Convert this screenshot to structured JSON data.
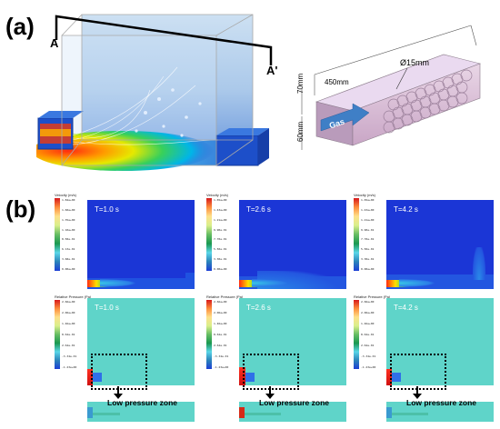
{
  "panel_a": {
    "label": "(a)",
    "section_start": "A",
    "section_end": "A'",
    "dims": {
      "length": "450mm",
      "diameter": "Ø15mm",
      "height1": "70mm",
      "height2": "60mm",
      "inlet_label": "Gas"
    }
  },
  "panel_b": {
    "label": "(b)",
    "times": [
      "T=1.0 s",
      "T=2.6 s",
      "T=4.2 s"
    ],
    "velocity_title": "Velocity (m/s)",
    "pressure_title": "Relative Pressure (Pa)",
    "low_pressure_label": "Low pressure zone",
    "velocity_ticks": [
      [
        "1.84e+00",
        "1.71e+00",
        "1.60e+00",
        "1.47e+00",
        "1.35e+00",
        "1.23e+00",
        "1.10e+00",
        "9.80e-01",
        "8.58e-01",
        "7.35e-01",
        "6.13e-01",
        "4.90e-01",
        "3.68e-01",
        "2.45e-01",
        "1.23e-01",
        "0.00e+00"
      ],
      [
        "1.65e+00",
        "1.54e+00",
        "1.43e+00",
        "1.32e+00",
        "1.21e+00",
        "1.10e+00",
        "9.90e-01",
        "8.80e-01",
        "7.70e-01",
        "6.60e-01",
        "5.50e-01",
        "4.40e-01",
        "3.30e-01",
        "2.20e-01",
        "1.10e-01",
        "0.00e+00"
      ],
      [
        "1.65e+00",
        "1.54e+00",
        "1.43e+00",
        "1.32e+00",
        "1.21e+00",
        "1.10e+00",
        "9.90e-01",
        "8.80e-01",
        "7.70e-01",
        "6.60e-01",
        "5.50e-01",
        "4.40e-01",
        "3.30e-01",
        "2.20e-01",
        "1.10e-01",
        "0.00e+00"
      ]
    ],
    "pressure_ticks": [
      [
        "2.66e+00",
        "2.36e+00",
        "2.06e+00",
        "1.76e+00",
        "1.46e+00",
        "1.16e+00",
        "8.62e-01",
        "5.63e-01",
        "2.64e-01",
        "-3.50e-02",
        "-3.34e-01",
        "-6.33e-01",
        "-9.32e-01",
        "-1.23e+00"
      ],
      [
        "2.66e+00",
        "2.36e+00",
        "2.06e+00",
        "1.76e+00",
        "1.46e+00",
        "1.16e+00",
        "8.62e-01",
        "5.63e-01",
        "2.64e-01",
        "-3.50e-02",
        "-3.34e-01",
        "-6.33e-01",
        "-9.32e-01",
        "-1.23e+00"
      ],
      [
        "2.66e+00",
        "2.36e+00",
        "2.06e+00",
        "1.76e+00",
        "1.46e+00",
        "1.16e+00",
        "8.62e-01",
        "5.63e-01",
        "2.64e-01",
        "-3.50e-02",
        "-3.34e-01",
        "-6.33e-01",
        "-9.32e-01",
        "-1.23e+00"
      ]
    ]
  }
}
